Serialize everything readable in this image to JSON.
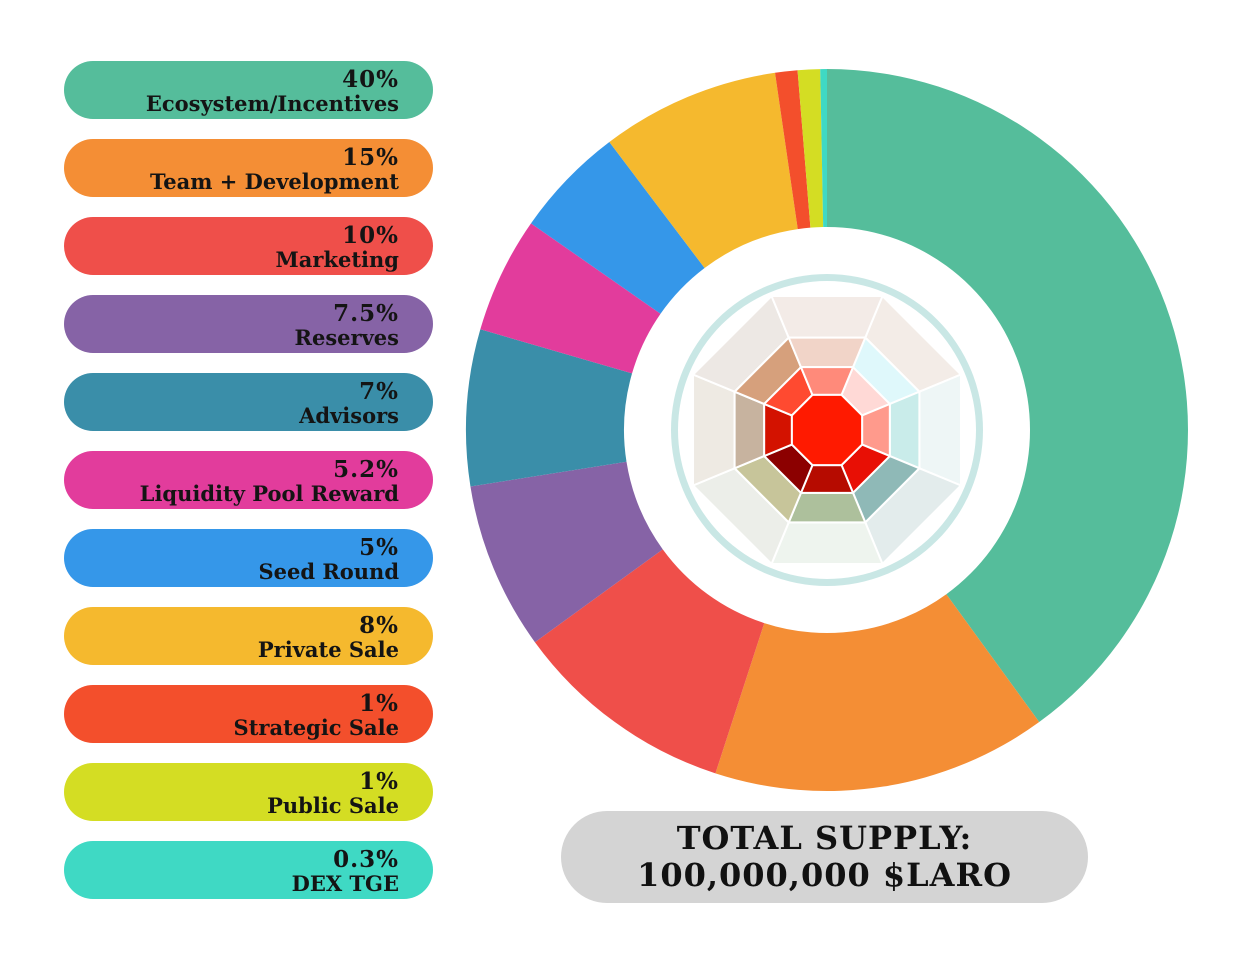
{
  "chart_data": {
    "type": "pie",
    "subtype": "donut",
    "categories": [
      "Ecosystem/Incentives",
      "Team + Development",
      "Marketing",
      "Reserves",
      "Advisors",
      "Liquidity Pool Reward",
      "Seed Round",
      "Private Sale",
      "Strategic Sale",
      "Public Sale",
      "DEX TGE"
    ],
    "values": [
      40,
      15,
      10,
      7.5,
      7,
      5.2,
      5,
      8,
      1,
      1,
      0.3
    ],
    "labels": [
      "40%",
      "15%",
      "10%",
      "7.5%",
      "7%",
      "5.2%",
      "5%",
      "8%",
      "1%",
      "1%",
      "0.3%"
    ],
    "colors": [
      "#55bd9b",
      "#f48e35",
      "#ef4f4a",
      "#8663a6",
      "#3a8ea9",
      "#e23c9c",
      "#3597e9",
      "#f5b92e",
      "#f34f2c",
      "#d4dd23",
      "#3fd9c4"
    ],
    "legend_position": "left"
  },
  "total_supply": {
    "line1": "TOTAL SUPPLY:",
    "line2": "100,000,000 $LARO"
  },
  "center_logo": "laro-gem-logo"
}
